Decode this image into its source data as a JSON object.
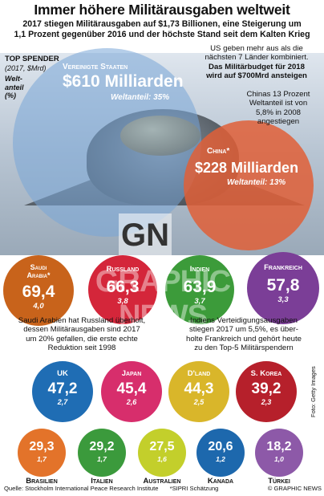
{
  "header": {
    "title": "Immer höhere Militärausgaben weltweit",
    "subtitle_lines": [
      "2017 stiegen Militärausgaben auf $1,73 Billionen, eine Steigerung um",
      "1,1 Prozent gegenüber 2016 und der höchste Stand seit dem Kalten Krieg"
    ]
  },
  "legend": {
    "heading": "TOP SPENDER",
    "units": "(2017, $Mrd)",
    "share_label_1": "Welt-",
    "share_label_2": "anteil",
    "share_label_3": "(%)"
  },
  "us": {
    "name": "Vereinigte Staaten",
    "value": "$610 Milliarden",
    "share": "Weltanteil: 35%",
    "note_lines": [
      "US geben mehr aus als die",
      "nächsten 7 Länder kombiniert."
    ],
    "note_bold_lines": [
      "Das Militärbudget für 2018",
      "wird auf $700Mrd ansteigen"
    ]
  },
  "china": {
    "name": "China*",
    "value": "$228 Milliarden",
    "share": "Weltanteil: 13%",
    "note_lines": [
      "Chinas 13 Prozent",
      "Weltanteil ist von",
      "5,8% in 2008",
      "angestiegen"
    ]
  },
  "row1": [
    {
      "name_1": "Saudi",
      "name_2": "Arabia*",
      "value": "69,4",
      "share": "4,0",
      "color": "#c8631b"
    },
    {
      "name_1": "Russland",
      "name_2": "",
      "value": "66,3",
      "share": "3,8",
      "color": "#d4263a"
    },
    {
      "name_1": "Indien",
      "name_2": "",
      "value": "63,9",
      "share": "3,7",
      "color": "#3c9b3a"
    },
    {
      "name_1": "Frankreich",
      "name_2": "",
      "value": "57,8",
      "share": "3,3",
      "color": "#7b3e97"
    }
  ],
  "notes_mid": {
    "saudi": [
      "Saudi Arabien hat Russland überholt,",
      "dessen Militärausgaben sind 2017",
      "um 20% gefallen, die erste echte",
      "Reduktion seit 1998"
    ],
    "india": [
      "Indiens Verteidigungsausgaben",
      "stiegen 2017 um 5,5%, es über-",
      "holte Frankreich und gehört heute",
      "zu den Top-5 Militärspendern"
    ]
  },
  "row2": [
    {
      "name": "UK",
      "value": "47,2",
      "share": "2,7",
      "color": "#1f6db4"
    },
    {
      "name": "Japan",
      "value": "45,4",
      "share": "2,6",
      "color": "#d72e6c"
    },
    {
      "name": "D'land",
      "value": "44,3",
      "share": "2,5",
      "color": "#d9b62a"
    },
    {
      "name": "S. Korea",
      "value": "39,2",
      "share": "2,3",
      "color": "#b6202b"
    }
  ],
  "row3": [
    {
      "name": "Brasilien",
      "value": "29,3",
      "share": "1,7",
      "color": "#e3732a"
    },
    {
      "name": "Italien",
      "value": "29,2",
      "share": "1,7",
      "color": "#3b9a3c"
    },
    {
      "name": "Australien",
      "value": "27,5",
      "share": "1,6",
      "color": "#c3cf2b"
    },
    {
      "name": "Kanada",
      "value": "20,6",
      "share": "1,2",
      "color": "#1d68ad"
    },
    {
      "name": "Türkei",
      "value": "18,2",
      "share": "1,0",
      "color": "#8d59a8"
    }
  ],
  "footer": {
    "source": "Quelle: Stockholm International Peace Research Institute",
    "note": "*SIPRI Schätzung",
    "credit": "© GRAPHIC NEWS",
    "photo_credit": "Foto: Getty Images"
  },
  "watermark": {
    "logo": "GN",
    "text": "GRAPHIC NEWS"
  }
}
